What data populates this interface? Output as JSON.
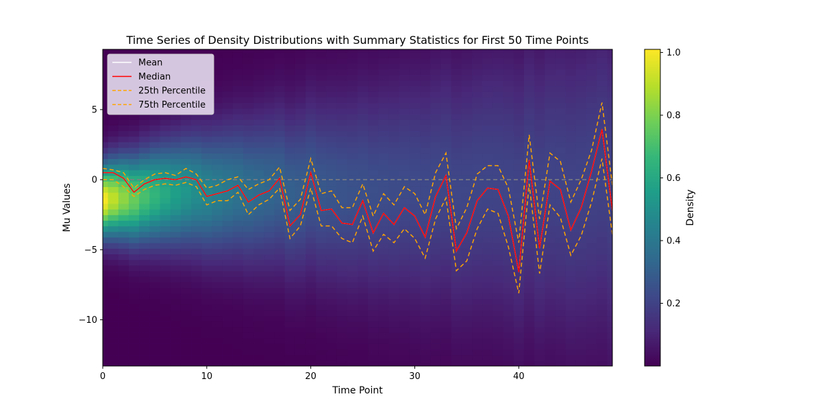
{
  "chart_data": {
    "type": "heatmap",
    "title": "Time Series of Density Distributions with Summary Statistics for First 50 Time Points",
    "xlabel": "Time Point",
    "ylabel": "Mu Values",
    "xlim": [
      0,
      49
    ],
    "ylim": [
      -13.3,
      9.3
    ],
    "x_ticks": [
      0,
      10,
      20,
      30,
      40
    ],
    "x_tick_labels": [
      "0",
      "10",
      "20",
      "30",
      "40"
    ],
    "y_ticks": [
      5,
      0,
      -5,
      -10
    ],
    "y_tick_labels": [
      "5",
      "0",
      "−5",
      "−10"
    ],
    "legend_position": "upper-left",
    "legend": [
      {
        "label": "Mean",
        "color": "#ffffff",
        "style": "solid"
      },
      {
        "label": "Median",
        "color": "#ff0000",
        "style": "solid"
      },
      {
        "label": "25th Percentile",
        "color": "#ffa500",
        "style": "dashed"
      },
      {
        "label": "75th Percentile",
        "color": "#ffa500",
        "style": "dashed"
      }
    ],
    "reference_line": {
      "y": 0,
      "color": "#808080",
      "style": "dashed"
    },
    "colorbar": {
      "label": "Density",
      "colormap": "viridis",
      "range": [
        0.0,
        1.01
      ],
      "ticks": [
        0.2,
        0.4,
        0.6,
        0.8,
        1.0
      ],
      "tick_labels": [
        "0.2",
        "0.4",
        "0.6",
        "0.8",
        "1.0"
      ]
    },
    "x": [
      0,
      1,
      2,
      3,
      4,
      5,
      6,
      7,
      8,
      9,
      10,
      11,
      12,
      13,
      14,
      15,
      16,
      17,
      18,
      19,
      20,
      21,
      22,
      23,
      24,
      25,
      26,
      27,
      28,
      29,
      30,
      31,
      32,
      33,
      34,
      35,
      36,
      37,
      38,
      39,
      40,
      41,
      42,
      43,
      44,
      45,
      46,
      47,
      48,
      49
    ],
    "series": [
      {
        "name": "Mean",
        "values": [
          0.5,
          0.5,
          0.1,
          -0.9,
          -0.3,
          0,
          0.1,
          0,
          0.2,
          0,
          -1.2,
          -1,
          -0.8,
          -0.4,
          -1.6,
          -1.1,
          -0.8,
          0.1,
          -3.3,
          -2.5,
          0.5,
          -2.2,
          -2.1,
          -3.1,
          -3.2,
          -1.5,
          -3.8,
          -2.4,
          -3.2,
          -2,
          -2.6,
          -4.1,
          -1.2,
          0.3,
          -5.1,
          -3.8,
          -1.5,
          -0.6,
          -0.7,
          -2.6,
          -6.6,
          1.4,
          -4.9,
          -0.1,
          -0.7,
          -3.6,
          -2,
          0.6,
          3.6,
          -2.2
        ]
      },
      {
        "name": "Median",
        "values": [
          0.5,
          0.5,
          0.1,
          -0.9,
          -0.3,
          0,
          0.1,
          0,
          0.2,
          0,
          -1.2,
          -1,
          -0.8,
          -0.4,
          -1.6,
          -1.1,
          -0.8,
          0.1,
          -3.3,
          -2.5,
          0.5,
          -2.2,
          -2.1,
          -3.1,
          -3.2,
          -1.5,
          -3.8,
          -2.4,
          -3.2,
          -2,
          -2.6,
          -4.1,
          -1.2,
          0.3,
          -5.1,
          -3.8,
          -1.5,
          -0.6,
          -0.7,
          -2.6,
          -6.6,
          1.4,
          -4.9,
          -0.1,
          -0.7,
          -3.6,
          -2,
          0.6,
          3.6,
          -2.2
        ]
      },
      {
        "name": "25th Percentile",
        "values": [
          0,
          0,
          -0.5,
          -1.2,
          -0.7,
          -0.4,
          -0.3,
          -0.4,
          -0.2,
          -0.5,
          -1.8,
          -1.5,
          -1.5,
          -0.9,
          -2.5,
          -1.8,
          -1.4,
          -0.6,
          -4.2,
          -3.3,
          -0.6,
          -3.3,
          -3.3,
          -4.2,
          -4.5,
          -2.6,
          -5.1,
          -3.9,
          -4.5,
          -3.5,
          -4.2,
          -5.6,
          -2.8,
          -1.3,
          -6.5,
          -5.8,
          -3.5,
          -2.1,
          -2.4,
          -4.8,
          -8.1,
          -0.3,
          -6.7,
          -1.8,
          -2.7,
          -5.4,
          -4,
          -1.6,
          1.5,
          -3.9
        ]
      },
      {
        "name": "75th Percentile",
        "values": [
          0.8,
          0.7,
          0.5,
          -0.6,
          0,
          0.4,
          0.5,
          0.3,
          0.8,
          0.4,
          -0.6,
          -0.4,
          0,
          0.2,
          -0.7,
          -0.3,
          0,
          0.9,
          -2.2,
          -1.4,
          1.5,
          -1,
          -0.8,
          -2,
          -2,
          -0.3,
          -2.6,
          -1,
          -1.8,
          -0.5,
          -1,
          -2.5,
          0.5,
          1.9,
          -3.5,
          -2,
          0.4,
          1,
          1,
          -0.6,
          -4.5,
          3.2,
          -2.8,
          1.9,
          1.3,
          -1.6,
          0,
          2.1,
          5.5,
          -0.4
        ]
      }
    ]
  }
}
